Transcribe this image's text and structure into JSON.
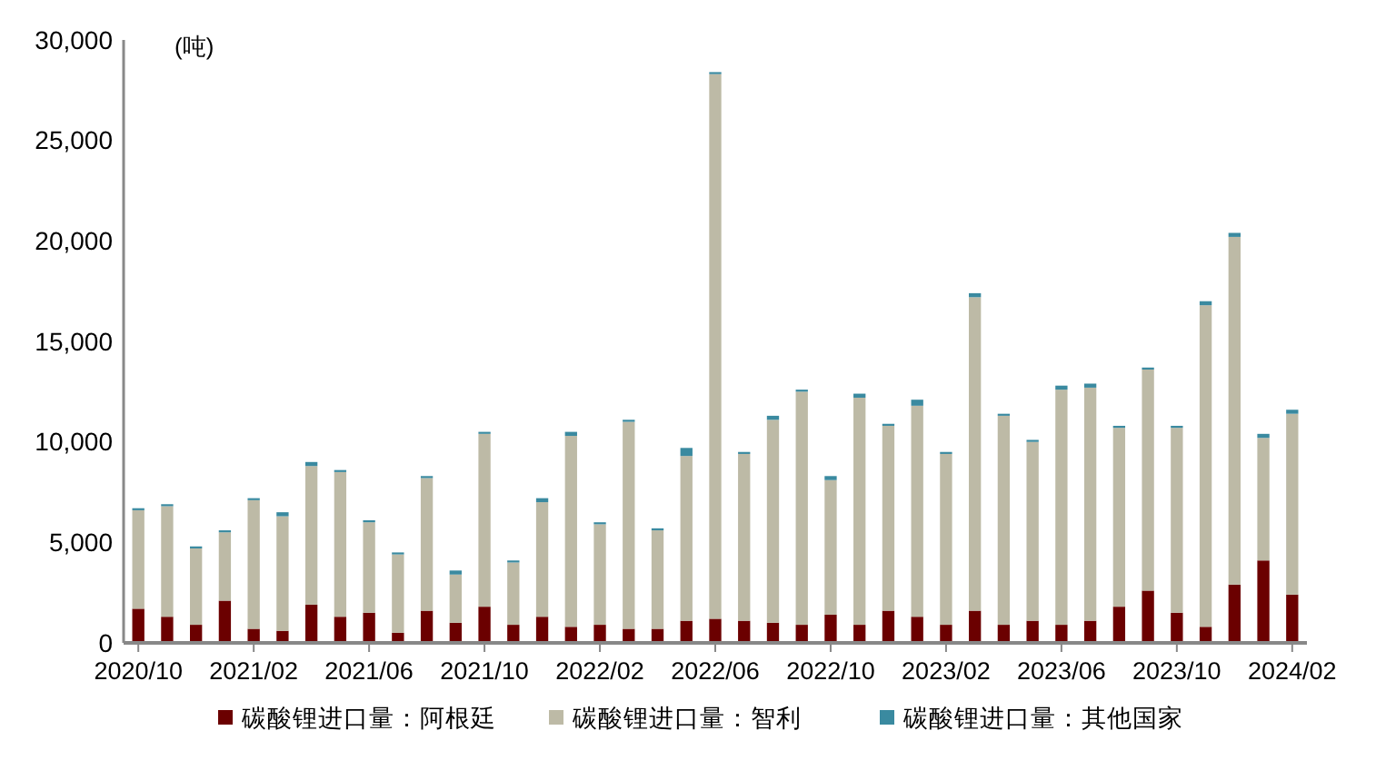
{
  "chart_data": {
    "type": "bar",
    "stacked": true,
    "ylabel": "(吨)",
    "legend": "bottom",
    "grid": false,
    "categories": [
      "2020/10",
      null,
      null,
      null,
      "2021/02",
      null,
      null,
      null,
      "2021/06",
      null,
      null,
      null,
      "2021/10",
      null,
      null,
      null,
      "2022/02",
      null,
      null,
      null,
      "2022/06",
      null,
      null,
      null,
      "2022/10",
      null,
      null,
      null,
      "2023/02",
      null,
      null,
      null,
      "2023/06",
      null,
      null,
      null,
      "2023/10",
      null,
      null,
      null,
      "2024/02"
    ],
    "ylim": [
      0,
      30000
    ],
    "yticks": [
      {
        "value": 0,
        "label": "0"
      },
      {
        "value": 5000,
        "label": "5,000"
      },
      {
        "value": 10000,
        "label": "10,000"
      },
      {
        "value": 15000,
        "label": "15,000"
      },
      {
        "value": 20000,
        "label": "20,000"
      },
      {
        "value": 25000,
        "label": "25,000"
      },
      {
        "value": 30000,
        "label": "30,000"
      }
    ],
    "series": [
      {
        "name": "碳酸锂进口量：阿根廷",
        "color": "#6b0000",
        "values": [
          1700,
          1300,
          900,
          2100,
          700,
          600,
          1900,
          1300,
          1500,
          500,
          1600,
          1000,
          1800,
          900,
          1300,
          800,
          900,
          700,
          700,
          1100,
          1200,
          1100,
          1000,
          900,
          1400,
          900,
          1600,
          1300,
          900,
          1600,
          900,
          1100,
          900,
          1100,
          1800,
          2600,
          1500,
          800,
          2900,
          4100,
          2400
        ]
      },
      {
        "name": "碳酸锂进口量：智利",
        "color": "#bdbaa6",
        "values": [
          4900,
          5500,
          3800,
          3400,
          6400,
          5700,
          6900,
          7200,
          4500,
          3900,
          6600,
          2400,
          8600,
          3100,
          5700,
          9500,
          5000,
          10300,
          4900,
          8200,
          27100,
          8300,
          10100,
          11600,
          6700,
          11300,
          9200,
          10500,
          8500,
          15600,
          10400,
          8900,
          11700,
          11600,
          8900,
          11000,
          9200,
          16000,
          17300,
          6100,
          9000
        ]
      },
      {
        "name": "碳酸锂进口量：其他国家",
        "color": "#3a8aa0",
        "values": [
          100,
          100,
          100,
          100,
          100,
          200,
          200,
          100,
          100,
          100,
          100,
          200,
          100,
          100,
          200,
          200,
          100,
          100,
          100,
          400,
          100,
          100,
          200,
          100,
          200,
          200,
          100,
          300,
          100,
          200,
          100,
          100,
          200,
          200,
          100,
          100,
          100,
          200,
          200,
          200,
          200
        ]
      }
    ]
  }
}
